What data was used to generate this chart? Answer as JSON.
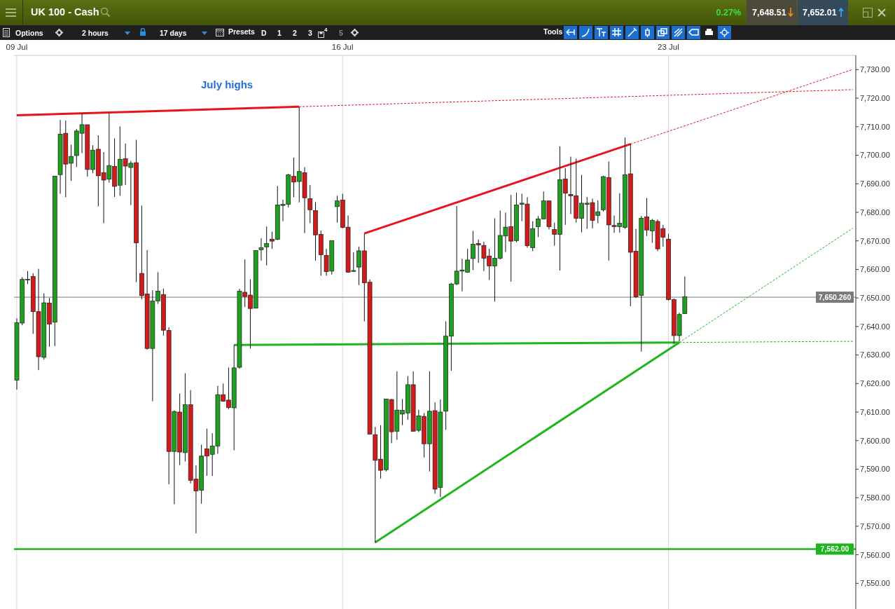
{
  "chart_data": {
    "type": "candlestick",
    "title": "UK 100 - Cash",
    "categories": [
      "09 Jul",
      null,
      null,
      null,
      null,
      null,
      null,
      null,
      null,
      null,
      null,
      null,
      null,
      null,
      null,
      null,
      null,
      null,
      null,
      null,
      null,
      null,
      null,
      null,
      null,
      null,
      null,
      null,
      null,
      null,
      null,
      null,
      null,
      null,
      null,
      null,
      null,
      null,
      null,
      null,
      null,
      null,
      null,
      null,
      null,
      null,
      null,
      null,
      null,
      null,
      null,
      null,
      null,
      null,
      null,
      null,
      null,
      null,
      null,
      null,
      "16 Jul",
      null,
      null,
      null,
      null,
      null,
      null,
      null,
      null,
      null,
      null,
      null,
      null,
      null,
      null,
      null,
      null,
      null,
      null,
      null,
      null,
      null,
      null,
      null,
      null,
      null,
      null,
      null,
      null,
      null,
      null,
      null,
      null,
      null,
      null,
      null,
      null,
      null,
      null,
      null,
      null,
      null,
      null,
      null,
      null,
      null,
      null,
      null,
      null,
      null,
      null,
      null,
      null,
      null,
      null,
      null,
      null,
      null,
      null,
      null,
      "23 Jul",
      null,
      null,
      null,
      null,
      null,
      null,
      null,
      null,
      null,
      null,
      null,
      null,
      null,
      null,
      null,
      null,
      null,
      null,
      null,
      null,
      null,
      null,
      null,
      null,
      null,
      null,
      null,
      null,
      null,
      null,
      null,
      null,
      null,
      null
    ],
    "ohlc": [
      [
        7621.2,
        7642.8,
        7617.9,
        7641.3
      ],
      [
        7641.2,
        7657.3,
        7640.4,
        7656.5
      ],
      [
        7656.3,
        7659.4,
        7654.9,
        7656.5
      ],
      [
        7657.5,
        7658.7,
        7637.4,
        7645.2
      ],
      [
        7645.2,
        7660.2,
        7624.7,
        7629.4
      ],
      [
        7629.2,
        7651.6,
        7628.4,
        7648.3
      ],
      [
        7648.2,
        7650.0,
        7632.9,
        7640.8
      ],
      [
        7641.5,
        7692.7,
        7633.1,
        7692.7
      ],
      [
        7693.2,
        7712.4,
        7686.5,
        7707.4
      ],
      [
        7707.7,
        7712.2,
        7685.3,
        7696.9
      ],
      [
        7697.2,
        7703.7,
        7691.0,
        7699.6
      ],
      [
        7699.9,
        7709.2,
        7695.9,
        7708.5
      ],
      [
        7707.7,
        7714.6,
        7700.7,
        7710.7
      ],
      [
        7710.7,
        7710.7,
        7692.5,
        7695.0
      ],
      [
        7695.0,
        7703.5,
        7693.7,
        7701.8
      ],
      [
        7702.1,
        7707.0,
        7682.1,
        7692.8
      ],
      [
        7693.9,
        7701.1,
        7676.2,
        7691.3
      ],
      [
        7691.6,
        7714.8,
        7690.4,
        7696.4
      ],
      [
        7696.1,
        7705.9,
        7685.4,
        7689.1
      ],
      [
        7689.5,
        7710.1,
        7685.8,
        7698.6
      ],
      [
        7698.8,
        7704.1,
        7689.6,
        7696.2
      ],
      [
        7695.7,
        7698.0,
        7682.5,
        7697.2
      ],
      [
        7697.4,
        7705.4,
        7655.5,
        7669.3
      ],
      [
        7658.6,
        7682.4,
        7649.5,
        7650.8
      ],
      [
        7651.4,
        7666.8,
        7631.9,
        7632.3
      ],
      [
        7632.3,
        7652.7,
        7613.8,
        7648.9
      ],
      [
        7648.9,
        7659.0,
        7647.9,
        7652.4
      ],
      [
        7651.2,
        7653.3,
        7636.8,
        7638.7
      ],
      [
        7638.6,
        7639.7,
        7584.7,
        7596.2
      ],
      [
        7596.2,
        7610.6,
        7577.7,
        7610.2
      ],
      [
        7610.0,
        7616.5,
        7591.4,
        7596.0
      ],
      [
        7595.8,
        7623.6,
        7592.7,
        7612.6
      ],
      [
        7612.6,
        7617.7,
        7585.0,
        7586.1
      ],
      [
        7586.5,
        7591.3,
        7567.5,
        7582.4
      ],
      [
        7582.6,
        7598.6,
        7577.9,
        7594.6
      ],
      [
        7597.1,
        7604.2,
        7587.7,
        7594.6
      ],
      [
        7595.2,
        7602.6,
        7587.6,
        7598.1
      ],
      [
        7598.1,
        7619.2,
        7595.4,
        7616.1
      ],
      [
        7616.1,
        7620.0,
        7613.7,
        7613.8
      ],
      [
        7614.2,
        7625.6,
        7611.0,
        7611.6
      ],
      [
        7611.5,
        7633.5,
        7596.6,
        7625.5
      ],
      [
        7625.7,
        7653.2,
        7625.2,
        7652.4
      ],
      [
        7652.0,
        7663.5,
        7646.8,
        7650.5
      ],
      [
        7651.0,
        7656.5,
        7632.3,
        7646.3
      ],
      [
        7646.4,
        7666.6,
        7646.4,
        7666.6
      ],
      [
        7666.9,
        7670.9,
        7663.1,
        7667.6
      ],
      [
        7667.9,
        7675.0,
        7661.4,
        7669.1
      ],
      [
        7670.6,
        7673.2,
        7667.2,
        7669.9
      ],
      [
        7670.5,
        7689.2,
        7670.3,
        7682.6
      ],
      [
        7682.4,
        7684.4,
        7676.9,
        7682.8
      ],
      [
        7682.8,
        7693.5,
        7681.7,
        7693.1
      ],
      [
        7692.6,
        7699.2,
        7685.3,
        7690.6
      ],
      [
        7690.8,
        7716.9,
        7683.5,
        7694.3
      ],
      [
        7693.9,
        7695.8,
        7672.7,
        7685.1
      ],
      [
        7684.8,
        7689.6,
        7676.2,
        7680.9
      ],
      [
        7680.6,
        7683.6,
        7663.1,
        7672.1
      ],
      [
        7672.3,
        7673.6,
        7657.8,
        7665.1
      ],
      [
        7664.9,
        7667.2,
        7657.8,
        7659.2
      ],
      [
        7659.4,
        7670.1,
        7658.2,
        7670.1
      ],
      [
        7682.0,
        7685.8,
        7676.4,
        7684.0
      ],
      [
        7684.3,
        7686.5,
        7674.4,
        7674.7
      ],
      [
        7674.8,
        7678.9,
        7659.0,
        7659.0
      ],
      [
        7659.3,
        7666.0,
        7659.2,
        7659.6
      ],
      [
        7660.8,
        7668.0,
        7654.5,
        7666.5
      ],
      [
        7666.5,
        7672.5,
        7641.8,
        7655.3
      ],
      [
        7655.5,
        7656.5,
        7602.3,
        7602.3
      ],
      [
        7602.1,
        7604.8,
        7564.2,
        7593.1
      ],
      [
        7593.5,
        7605.4,
        7586.7,
        7589.6
      ],
      [
        7589.8,
        7614.6,
        7589.2,
        7614.6
      ],
      [
        7614.4,
        7614.6,
        7599.1,
        7603.1
      ],
      [
        7603.3,
        7624.3,
        7600.3,
        7610.7
      ],
      [
        7609.3,
        7614.6,
        7605.4,
        7610.6
      ],
      [
        7609.7,
        7622.6,
        7607.3,
        7619.6
      ],
      [
        7619.6,
        7624.3,
        7603.2,
        7603.3
      ],
      [
        7603.6,
        7610.8,
        7603.0,
        7608.7
      ],
      [
        7608.5,
        7609.7,
        7594.1,
        7598.9
      ],
      [
        7598.9,
        7624.3,
        7589.2,
        7610.3
      ],
      [
        7610.5,
        7613.4,
        7581.4,
        7583.0
      ],
      [
        7583.6,
        7614.4,
        7580.2,
        7610.0
      ],
      [
        7610.3,
        7641.8,
        7603.8,
        7636.6
      ],
      [
        7636.6,
        7655.3,
        7624.5,
        7654.9
      ],
      [
        7654.9,
        7682.2,
        7654.5,
        7659.4
      ],
      [
        7659.4,
        7663.7,
        7652.3,
        7659.8
      ],
      [
        7659.0,
        7667.2,
        7658.8,
        7663.3
      ],
      [
        7663.8,
        7673.5,
        7659.8,
        7668.8
      ],
      [
        7669.1,
        7670.5,
        7662.3,
        7668.6
      ],
      [
        7668.4,
        7669.7,
        7659.4,
        7663.9
      ],
      [
        7664.7,
        7667.2,
        7656.3,
        7661.2
      ],
      [
        7661.2,
        7677.9,
        7648.7,
        7663.9
      ],
      [
        7663.9,
        7680.6,
        7663.5,
        7671.9
      ],
      [
        7671.7,
        7679.9,
        7666.1,
        7674.8
      ],
      [
        7675.0,
        7686.1,
        7655.7,
        7669.9
      ],
      [
        7670.1,
        7686.9,
        7669.5,
        7682.6
      ],
      [
        7682.8,
        7686.5,
        7676.9,
        7683.2
      ],
      [
        7682.9,
        7685.3,
        7667.6,
        7668.3
      ],
      [
        7667.6,
        7676.9,
        7666.4,
        7674.3
      ],
      [
        7675.0,
        7678.7,
        7671.3,
        7677.7
      ],
      [
        7677.7,
        7687.3,
        7677.6,
        7684.0
      ],
      [
        7684.0,
        7684.0,
        7674.0,
        7675.0
      ],
      [
        7674.0,
        7676.4,
        7668.3,
        7672.3
      ],
      [
        7672.3,
        7703.1,
        7659.6,
        7691.4
      ],
      [
        7691.7,
        7695.5,
        7675.6,
        7686.7
      ],
      [
        7686.3,
        7699.5,
        7679.4,
        7685.8
      ],
      [
        7685.8,
        7698.8,
        7676.4,
        7677.9
      ],
      [
        7677.9,
        7693.1,
        7673.0,
        7683.2
      ],
      [
        7682.8,
        7685.4,
        7674.2,
        7683.2
      ],
      [
        7683.4,
        7684.8,
        7674.4,
        7677.2
      ],
      [
        7678.9,
        7684.2,
        7676.2,
        7680.2
      ],
      [
        7680.9,
        7692.8,
        7680.3,
        7692.5
      ],
      [
        7692.2,
        7697.8,
        7663.1,
        7675.6
      ],
      [
        7675.4,
        7678.9,
        7672.8,
        7675.0
      ],
      [
        7675.0,
        7686.7,
        7672.9,
        7676.2
      ],
      [
        7674.7,
        7706.2,
        7674.2,
        7693.2
      ],
      [
        7693.5,
        7704.1,
        7647.1,
        7666.0
      ],
      [
        7666.4,
        7674.2,
        7650.0,
        7650.4
      ],
      [
        7650.9,
        7678.7,
        7631.2,
        7677.9
      ],
      [
        7678.4,
        7685.0,
        7671.7,
        7673.8
      ],
      [
        7673.5,
        7677.7,
        7669.3,
        7677.2
      ],
      [
        7676.8,
        7677.5,
        7666.4,
        7667.2
      ],
      [
        7674.3,
        7675.6,
        7668.0,
        7671.3
      ],
      [
        7670.6,
        7672.5,
        7649.1,
        7649.4
      ],
      [
        7649.4,
        7649.8,
        7633.9,
        7636.8
      ],
      [
        7636.8,
        7644.8,
        7634.8,
        7644.2
      ],
      [
        7644.5,
        7657.5,
        7644.5,
        7650.4
      ],
      null,
      null,
      null,
      null,
      null,
      null,
      null,
      null,
      null,
      null,
      null,
      null,
      null,
      null,
      null,
      null,
      null,
      null,
      null,
      null,
      null,
      null,
      null,
      null,
      null,
      null,
      null,
      null,
      null,
      null,
      null
    ],
    "colors": [
      "#1f9e1f",
      "#1f9e1f",
      "#1f9e1f",
      "#d11a1a",
      "#d11a1a",
      "#1f9e1f",
      "#d11a1a",
      "#1f9e1f",
      "#1f9e1f",
      "#d11a1a",
      "#1f9e1f",
      "#1f9e1f",
      "#1f9e1f",
      "#d11a1a",
      "#1f9e1f",
      "#d11a1a",
      "#d11a1a",
      "#1f9e1f",
      "#d11a1a",
      "#1f9e1f",
      "#d11a1a",
      "#1f9e1f",
      "#d11a1a",
      "#d11a1a",
      "#d11a1a",
      "#1f9e1f",
      "#1f9e1f",
      "#d11a1a",
      "#d11a1a",
      "#1f9e1f",
      "#d11a1a",
      "#1f9e1f",
      "#d11a1a",
      "#d11a1a",
      "#1f9e1f",
      "#d11a1a",
      "#1f9e1f",
      "#1f9e1f",
      "#d11a1a",
      "#d11a1a",
      "#1f9e1f",
      "#1f9e1f",
      "#d11a1a",
      "#d11a1a",
      "#1f9e1f",
      "#1f9e1f",
      "#1f9e1f",
      "#d11a1a",
      "#1f9e1f",
      "#1f9e1f",
      "#1f9e1f",
      "#d11a1a",
      "#1f9e1f",
      "#d11a1a",
      "#d11a1a",
      "#d11a1a",
      "#d11a1a",
      "#d11a1a",
      "#1f9e1f",
      "#1f9e1f",
      "#d11a1a",
      "#d11a1a",
      "#1f9e1f",
      "#1f9e1f",
      "#d11a1a",
      "#d11a1a",
      "#d11a1a",
      "#d11a1a",
      "#1f9e1f",
      "#d11a1a",
      "#1f9e1f",
      "#1f9e1f",
      "#1f9e1f",
      "#d11a1a",
      "#1f9e1f",
      "#d11a1a",
      "#1f9e1f",
      "#d11a1a",
      "#1f9e1f",
      "#1f9e1f",
      "#1f9e1f",
      "#1f9e1f",
      "#1f9e1f",
      "#1f9e1f",
      "#1f9e1f",
      "#d11a1a",
      "#d11a1a",
      "#d11a1a",
      "#1f9e1f",
      "#1f9e1f",
      "#1f9e1f",
      "#d11a1a",
      "#1f9e1f",
      "#1f9e1f",
      "#d11a1a",
      "#1f9e1f",
      "#1f9e1f",
      "#1f9e1f",
      "#d11a1a",
      "#d11a1a",
      "#1f9e1f",
      "#d11a1a",
      "#d11a1a",
      "#d11a1a",
      "#1f9e1f",
      "#1f9e1f",
      "#d11a1a",
      "#1f9e1f",
      "#1f9e1f",
      "#d11a1a",
      "#d11a1a",
      "#1f9e1f",
      "#1f9e1f",
      "#d11a1a",
      "#d11a1a",
      "#1f9e1f",
      "#d11a1a",
      "#1f9e1f",
      "#d11a1a",
      "#d11a1a",
      "#d11a1a",
      "#d11a1a",
      "#1f9e1f",
      "#1f9e1f",
      null,
      null,
      null,
      null,
      null,
      null,
      null,
      null,
      null,
      null,
      null,
      null,
      null,
      null,
      null,
      null,
      null,
      null,
      null,
      null,
      null,
      null,
      null,
      null,
      null,
      null,
      null,
      null,
      null,
      null,
      null
    ],
    "series": [
      {
        "type": "line",
        "color": "#e8141c",
        "line_style": "solid",
        "values": [
          7714.0,
          null,
          null,
          null,
          null,
          null,
          null,
          null,
          null,
          null,
          null,
          null,
          null,
          null,
          null,
          null,
          null,
          null,
          null,
          null,
          null,
          null,
          null,
          null,
          null,
          null,
          null,
          null,
          null,
          null,
          null,
          null,
          null,
          null,
          null,
          null,
          null,
          null,
          null,
          null,
          null,
          null,
          null,
          null,
          null,
          null,
          null,
          null,
          null,
          null,
          null,
          null,
          7717.0,
          null,
          null,
          null,
          null,
          null,
          null,
          null,
          null,
          null,
          null,
          null,
          null,
          null,
          null,
          null,
          null,
          null,
          null,
          null,
          null,
          null,
          null,
          null,
          null,
          null,
          null,
          null,
          null,
          null,
          null,
          null,
          null,
          null,
          null,
          null,
          null,
          null,
          null,
          null,
          null,
          null,
          null,
          null,
          null,
          null,
          null,
          null,
          null,
          null,
          null,
          null,
          null,
          null,
          null,
          null,
          null,
          null,
          null,
          null,
          null,
          null,
          null,
          null,
          null,
          null,
          null,
          null,
          null,
          null,
          null,
          null,
          null,
          null,
          null,
          null,
          null,
          null,
          null,
          null,
          null,
          null,
          null,
          null,
          null,
          null,
          null,
          null,
          null,
          null,
          null,
          null,
          null,
          null,
          null,
          null,
          null,
          null,
          null,
          null,
          null,
          null,
          null
        ]
      },
      {
        "type": "line",
        "color": "#e8141c",
        "line_style": "dashed",
        "values": [
          null,
          null,
          null,
          null,
          null,
          null,
          null,
          null,
          null,
          null,
          null,
          null,
          null,
          null,
          null,
          null,
          null,
          null,
          null,
          null,
          null,
          null,
          null,
          null,
          null,
          null,
          null,
          null,
          null,
          null,
          null,
          null,
          null,
          null,
          null,
          null,
          null,
          null,
          null,
          null,
          null,
          null,
          null,
          null,
          null,
          null,
          null,
          null,
          null,
          null,
          null,
          null,
          7717.0,
          null,
          null,
          null,
          null,
          null,
          null,
          null,
          null,
          null,
          null,
          null,
          null,
          null,
          null,
          null,
          null,
          null,
          null,
          null,
          null,
          null,
          null,
          null,
          null,
          null,
          null,
          null,
          null,
          null,
          null,
          null,
          null,
          null,
          null,
          null,
          null,
          null,
          null,
          null,
          null,
          null,
          null,
          null,
          null,
          null,
          null,
          null,
          null,
          null,
          null,
          null,
          null,
          null,
          null,
          null,
          null,
          null,
          null,
          null,
          null,
          null,
          null,
          null,
          null,
          null,
          null,
          null,
          null,
          null,
          null,
          null,
          null,
          null,
          null,
          null,
          null,
          null,
          null,
          null,
          null,
          null,
          null,
          null,
          null,
          null,
          null,
          null,
          null,
          null,
          null,
          null,
          null,
          null,
          null,
          null,
          null,
          null,
          null,
          null,
          null,
          null,
          7723.0
        ]
      },
      {
        "type": "line",
        "color": "#e8141c",
        "line_style": "solid",
        "values": [
          null,
          null,
          null,
          null,
          null,
          null,
          null,
          null,
          null,
          null,
          null,
          null,
          null,
          null,
          null,
          null,
          null,
          null,
          null,
          null,
          null,
          null,
          null,
          null,
          null,
          null,
          null,
          null,
          null,
          null,
          null,
          null,
          null,
          null,
          null,
          null,
          null,
          null,
          null,
          null,
          null,
          null,
          null,
          null,
          null,
          null,
          null,
          null,
          null,
          null,
          null,
          null,
          null,
          null,
          null,
          null,
          null,
          null,
          null,
          null,
          null,
          null,
          null,
          null,
          7672.6,
          null,
          null,
          null,
          null,
          null,
          null,
          null,
          null,
          null,
          null,
          null,
          null,
          null,
          null,
          null,
          null,
          null,
          null,
          null,
          null,
          null,
          null,
          null,
          null,
          null,
          null,
          null,
          null,
          null,
          null,
          null,
          null,
          null,
          null,
          null,
          null,
          null,
          null,
          null,
          null,
          null,
          null,
          null,
          null,
          null,
          null,
          null,
          null,
          7703.9,
          null,
          null,
          null,
          null,
          null,
          null,
          null,
          null,
          null,
          null,
          null,
          null,
          null,
          null,
          null,
          null,
          null,
          null,
          null,
          null,
          null,
          null,
          null,
          null,
          null,
          null,
          null,
          null,
          null,
          null,
          null,
          null,
          null,
          null,
          null,
          null,
          null,
          null,
          null,
          null,
          null
        ]
      },
      {
        "type": "line",
        "color": "#e8141c",
        "line_style": "dashed",
        "values": [
          null,
          null,
          null,
          null,
          null,
          null,
          null,
          null,
          null,
          null,
          null,
          null,
          null,
          null,
          null,
          null,
          null,
          null,
          null,
          null,
          null,
          null,
          null,
          null,
          null,
          null,
          null,
          null,
          null,
          null,
          null,
          null,
          null,
          null,
          null,
          null,
          null,
          null,
          null,
          null,
          null,
          null,
          null,
          null,
          null,
          null,
          null,
          null,
          null,
          null,
          null,
          null,
          null,
          null,
          null,
          null,
          null,
          null,
          null,
          null,
          null,
          null,
          null,
          null,
          null,
          null,
          null,
          null,
          null,
          null,
          null,
          null,
          null,
          null,
          null,
          null,
          null,
          null,
          null,
          null,
          null,
          null,
          null,
          null,
          null,
          null,
          null,
          null,
          null,
          null,
          null,
          null,
          null,
          null,
          null,
          null,
          null,
          null,
          null,
          null,
          null,
          null,
          null,
          null,
          null,
          null,
          null,
          null,
          null,
          null,
          null,
          null,
          null,
          7703.9,
          null,
          null,
          null,
          null,
          null,
          null,
          null,
          null,
          null,
          null,
          null,
          null,
          null,
          null,
          null,
          null,
          null,
          null,
          null,
          null,
          null,
          null,
          null,
          null,
          null,
          null,
          null,
          null,
          null,
          null,
          null,
          null,
          null,
          null,
          null,
          null,
          null,
          null,
          null,
          null,
          7730.1
        ]
      },
      {
        "type": "line",
        "color": "#1fb51f",
        "line_style": "solid",
        "values": [
          null,
          null,
          null,
          null,
          null,
          null,
          null,
          null,
          null,
          null,
          null,
          null,
          null,
          null,
          null,
          null,
          null,
          null,
          null,
          null,
          null,
          null,
          null,
          null,
          null,
          null,
          null,
          null,
          null,
          null,
          null,
          null,
          null,
          null,
          null,
          null,
          null,
          null,
          null,
          null,
          7633.5,
          null,
          null,
          null,
          null,
          null,
          null,
          null,
          null,
          null,
          null,
          null,
          null,
          null,
          null,
          null,
          null,
          null,
          null,
          null,
          null,
          null,
          null,
          null,
          null,
          null,
          null,
          null,
          null,
          null,
          null,
          null,
          null,
          null,
          null,
          null,
          null,
          null,
          null,
          null,
          null,
          null,
          null,
          null,
          null,
          null,
          null,
          null,
          null,
          null,
          null,
          null,
          null,
          null,
          null,
          null,
          null,
          null,
          null,
          null,
          null,
          null,
          null,
          null,
          null,
          null,
          null,
          null,
          null,
          null,
          null,
          null,
          null,
          null,
          null,
          null,
          null,
          null,
          null,
          null,
          null,
          null,
          7634.4,
          null,
          null,
          null,
          null,
          null,
          null,
          null,
          null,
          null,
          null,
          null,
          null,
          null,
          null,
          null,
          null,
          null,
          null,
          null,
          null,
          null,
          null,
          null,
          null,
          null,
          null,
          null,
          null,
          null,
          null,
          null,
          null
        ]
      },
      {
        "type": "line",
        "color": "#1fb51f",
        "line_style": "dashed",
        "values": [
          null,
          null,
          null,
          null,
          null,
          null,
          null,
          null,
          null,
          null,
          null,
          null,
          null,
          null,
          null,
          null,
          null,
          null,
          null,
          null,
          null,
          null,
          null,
          null,
          null,
          null,
          null,
          null,
          null,
          null,
          null,
          null,
          null,
          null,
          null,
          null,
          null,
          null,
          null,
          null,
          null,
          null,
          null,
          null,
          null,
          null,
          null,
          null,
          null,
          null,
          null,
          null,
          null,
          null,
          null,
          null,
          null,
          null,
          null,
          null,
          null,
          null,
          null,
          null,
          null,
          null,
          null,
          null,
          null,
          null,
          null,
          null,
          null,
          null,
          null,
          null,
          null,
          null,
          null,
          null,
          null,
          null,
          null,
          null,
          null,
          null,
          null,
          null,
          null,
          null,
          null,
          null,
          null,
          null,
          null,
          null,
          null,
          null,
          null,
          null,
          null,
          null,
          null,
          null,
          null,
          null,
          null,
          null,
          null,
          null,
          null,
          null,
          null,
          null,
          null,
          null,
          null,
          null,
          null,
          null,
          null,
          null,
          7634.4,
          null,
          null,
          null,
          null,
          null,
          null,
          null,
          null,
          null,
          null,
          null,
          null,
          null,
          null,
          null,
          null,
          null,
          null,
          null,
          null,
          null,
          null,
          null,
          null,
          null,
          null,
          null,
          null,
          null,
          null,
          null,
          7634.8
        ]
      },
      {
        "type": "line",
        "color": "#1fb51f",
        "line_style": "solid",
        "values": [
          null,
          null,
          null,
          null,
          null,
          null,
          null,
          null,
          null,
          null,
          null,
          null,
          null,
          null,
          null,
          null,
          null,
          null,
          null,
          null,
          null,
          null,
          null,
          null,
          null,
          null,
          null,
          null,
          null,
          null,
          null,
          null,
          null,
          null,
          null,
          null,
          null,
          null,
          null,
          null,
          null,
          null,
          null,
          null,
          null,
          null,
          null,
          null,
          null,
          null,
          null,
          null,
          null,
          null,
          null,
          null,
          null,
          null,
          null,
          null,
          null,
          null,
          null,
          null,
          null,
          null,
          7564.3,
          null,
          null,
          null,
          null,
          null,
          null,
          null,
          null,
          null,
          null,
          null,
          null,
          null,
          null,
          null,
          null,
          null,
          null,
          null,
          null,
          null,
          null,
          null,
          null,
          null,
          null,
          null,
          null,
          null,
          null,
          null,
          null,
          null,
          null,
          null,
          null,
          null,
          null,
          null,
          null,
          null,
          null,
          null,
          null,
          null,
          null,
          null,
          null,
          null,
          null,
          null,
          null,
          null,
          null,
          null,
          7634.4,
          null,
          null,
          null,
          null,
          null,
          null,
          null,
          null,
          null,
          null,
          null,
          null,
          null,
          null,
          null,
          null,
          null,
          null,
          null,
          null,
          null,
          null,
          null,
          null,
          null,
          null,
          null,
          null,
          null,
          null,
          null,
          null
        ]
      },
      {
        "type": "line",
        "color": "#1fb51f",
        "line_style": "dashed",
        "values": [
          null,
          null,
          null,
          null,
          null,
          null,
          null,
          null,
          null,
          null,
          null,
          null,
          null,
          null,
          null,
          null,
          null,
          null,
          null,
          null,
          null,
          null,
          null,
          null,
          null,
          null,
          null,
          null,
          null,
          null,
          null,
          null,
          null,
          null,
          null,
          null,
          null,
          null,
          null,
          null,
          null,
          null,
          null,
          null,
          null,
          null,
          null,
          null,
          null,
          null,
          null,
          null,
          null,
          null,
          null,
          null,
          null,
          null,
          null,
          null,
          null,
          null,
          null,
          null,
          null,
          null,
          null,
          null,
          null,
          null,
          null,
          null,
          null,
          null,
          null,
          null,
          null,
          null,
          null,
          null,
          null,
          null,
          null,
          null,
          null,
          null,
          null,
          null,
          null,
          null,
          null,
          null,
          null,
          null,
          null,
          null,
          null,
          null,
          null,
          null,
          null,
          null,
          null,
          null,
          null,
          null,
          null,
          null,
          null,
          null,
          null,
          null,
          null,
          null,
          null,
          null,
          null,
          null,
          null,
          null,
          null,
          null,
          7634.4,
          null,
          null,
          null,
          null,
          null,
          null,
          null,
          null,
          null,
          null,
          null,
          null,
          null,
          null,
          null,
          null,
          null,
          null,
          null,
          null,
          null,
          null,
          null,
          null,
          null,
          null,
          null,
          null,
          null,
          null,
          null,
          7674.5
        ]
      }
    ],
    "ylim": [
      7541,
      7735
    ],
    "yticks": [
      {
        "value": 7550,
        "label": "7,550.00"
      },
      {
        "value": 7560,
        "label": "7,560.00"
      },
      {
        "value": 7570,
        "label": "7,570.00"
      },
      {
        "value": 7580,
        "label": "7,580.00"
      },
      {
        "value": 7590,
        "label": "7,590.00"
      },
      {
        "value": 7600,
        "label": "7,600.00"
      },
      {
        "value": 7610,
        "label": "7,610.00"
      },
      {
        "value": 7620,
        "label": "7,620.00"
      },
      {
        "value": 7630,
        "label": "7,630.00"
      },
      {
        "value": 7640,
        "label": "7,640.00"
      },
      {
        "value": 7650,
        "label": "7,650.00"
      },
      {
        "value": 7660,
        "label": "7,660.00"
      },
      {
        "value": 7670,
        "label": "7,670.00"
      },
      {
        "value": 7680,
        "label": "7,680.00"
      },
      {
        "value": 7690,
        "label": "7,690.00"
      },
      {
        "value": 7700,
        "label": "7,700.00"
      },
      {
        "value": 7710,
        "label": "7,710.00"
      },
      {
        "value": 7720,
        "label": "7,720.00"
      },
      {
        "value": 7730,
        "label": "7,730.00"
      }
    ],
    "ref_lines": [
      {
        "axis": "y",
        "value": 7650.26,
        "label": "7,650.260",
        "color": "#7a7a7a"
      },
      {
        "axis": "y",
        "value": 7562.0,
        "label": "7,562.00",
        "color": "#1fb51f"
      }
    ],
    "grid": "x",
    "annotations": [
      "July highs",
      "0.27%",
      "7,648.51",
      "7,652.01",
      "Options",
      "2 hours",
      "17 days",
      "Presets",
      "D",
      "1",
      "2",
      "3",
      "4",
      "5",
      "Tools"
    ]
  }
}
